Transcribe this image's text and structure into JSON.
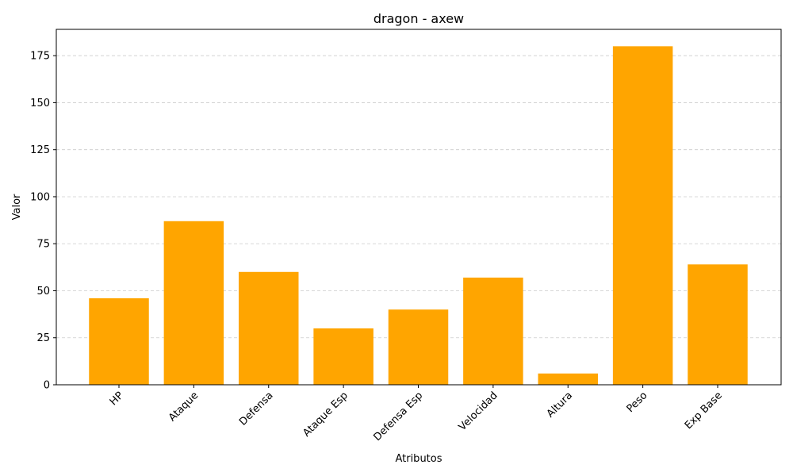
{
  "chart_data": {
    "type": "bar",
    "title": "dragon - axew",
    "xlabel": "Atributos",
    "ylabel": "Valor",
    "categories": [
      "HP",
      "Ataque",
      "Defensa",
      "Ataque Esp",
      "Defensa Esp",
      "Velocidad",
      "Altura",
      "Peso",
      "Exp Base"
    ],
    "values": [
      46,
      87,
      60,
      30,
      40,
      57,
      6,
      180,
      64
    ],
    "ylim": [
      0,
      189
    ],
    "yticks": [
      0,
      25,
      50,
      75,
      100,
      125,
      150,
      175
    ],
    "bar_color": "#FFA500",
    "grid": "y-dashed"
  }
}
